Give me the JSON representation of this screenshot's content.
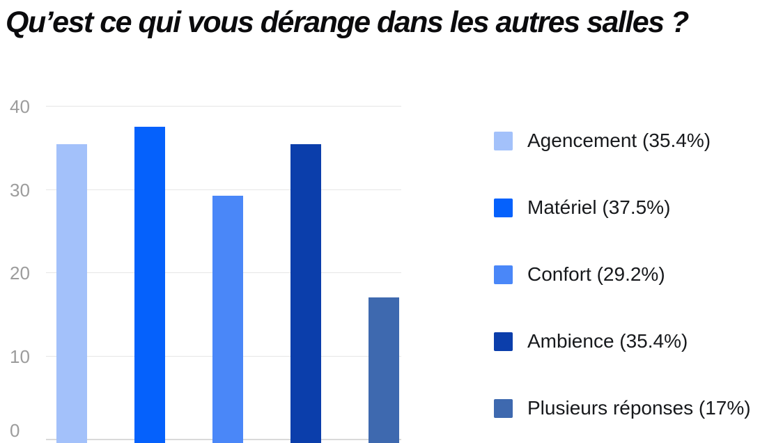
{
  "title": "Qu’est ce qui vous dérange dans les autres salles ?",
  "chart_data": {
    "type": "bar",
    "title": "Qu’est ce qui vous dérange dans les autres salles ?",
    "categories": [
      "Agencement",
      "Matériel",
      "Confort",
      "Ambience",
      "Plusieurs réponses"
    ],
    "values": [
      35.4,
      37.5,
      29.2,
      35.4,
      17
    ],
    "percent_labels": [
      "35.4%",
      "37.5%",
      "29.2%",
      "35.4%",
      "17%"
    ],
    "bar_colors": [
      "#a3c1fa",
      "#0561fc",
      "#4a87f8",
      "#0b3eab",
      "#3e69af"
    ],
    "legend_entries": [
      "Agencement (35.4%)",
      "Matériel (37.5%)",
      "Confort (29.2%)",
      "Ambience (35.4%)",
      "Plusieurs réponses (17%)"
    ],
    "xlabel": "",
    "ylabel": "",
    "ylim": [
      0,
      40
    ],
    "yticks": [
      0,
      10,
      20,
      30,
      40
    ],
    "grid": true,
    "legend_position": "right"
  },
  "axis_style": {
    "tick_color": "#9c9c9c",
    "grid_color": "#e6e6e6",
    "baseline_color": "#d9d9d9"
  }
}
